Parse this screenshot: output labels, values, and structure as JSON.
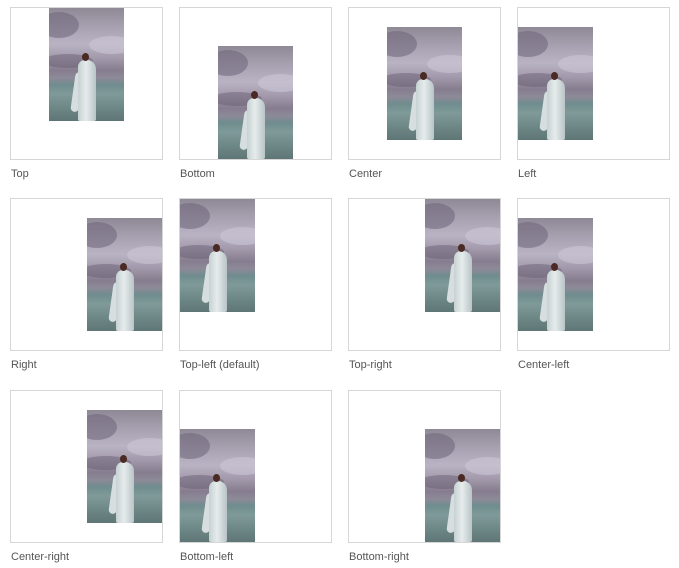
{
  "examples": [
    {
      "label": "Top"
    },
    {
      "label": "Bottom"
    },
    {
      "label": "Center"
    },
    {
      "label": "Left"
    },
    {
      "label": "Right"
    },
    {
      "label": "Top-left (default)"
    },
    {
      "label": "Top-right"
    },
    {
      "label": "Center-left"
    },
    {
      "label": "Center-right"
    },
    {
      "label": "Bottom-left"
    },
    {
      "label": "Bottom-right"
    }
  ]
}
